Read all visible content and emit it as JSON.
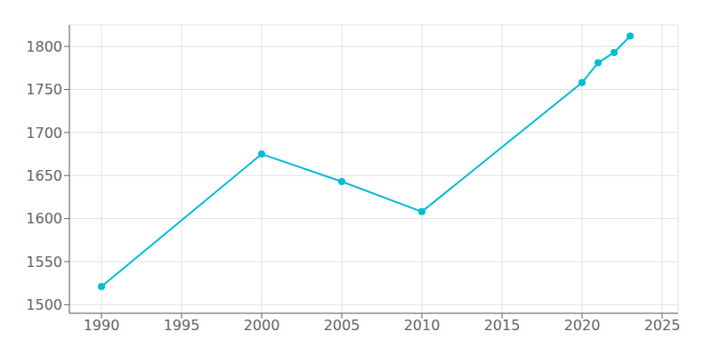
{
  "chart_data": {
    "type": "line",
    "x": [
      1990,
      2000,
      2005,
      2010,
      2020,
      2021,
      2022,
      2023
    ],
    "values": [
      1521,
      1675,
      1643,
      1608,
      1758,
      1781,
      1793,
      1812
    ],
    "color": "#00BCD4",
    "marker": "circle",
    "xlim": [
      1988,
      2026
    ],
    "ylim": [
      1490,
      1825
    ],
    "xticks": [
      1990,
      1995,
      2000,
      2005,
      2010,
      2015,
      2020,
      2025
    ],
    "yticks": [
      1500,
      1550,
      1600,
      1650,
      1700,
      1750,
      1800
    ],
    "grid": true
  }
}
